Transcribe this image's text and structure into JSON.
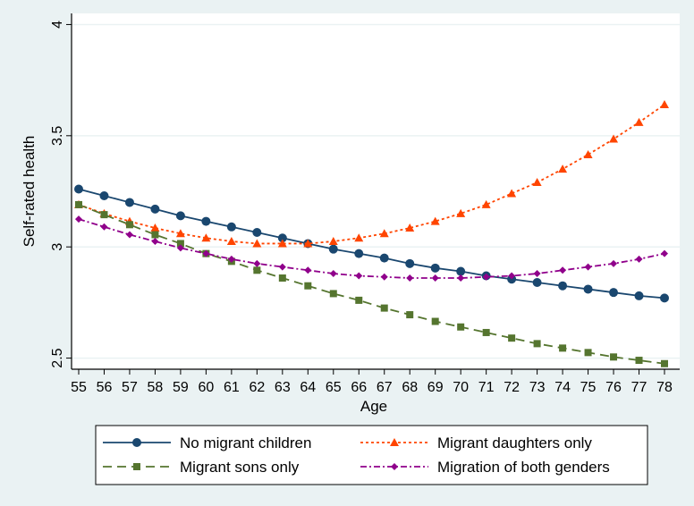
{
  "chart_data": {
    "type": "line",
    "title": "",
    "xlabel": "Age",
    "ylabel": "Self-rated health",
    "x": [
      55,
      56,
      57,
      58,
      59,
      60,
      61,
      62,
      63,
      64,
      65,
      66,
      67,
      68,
      69,
      70,
      71,
      72,
      73,
      74,
      75,
      76,
      77,
      78
    ],
    "xlim": [
      55,
      78
    ],
    "ylim": [
      2.45,
      4.05
    ],
    "yticks": [
      2.5,
      3,
      3.5,
      4
    ],
    "ytick_labels": [
      "2.5",
      "3",
      "3.5",
      "4"
    ],
    "grid": "horizontal",
    "legend_position": "bottom",
    "series": [
      {
        "name": "No migrant children",
        "color": "#1a476f",
        "marker": "circle",
        "line_style": "solid",
        "values": [
          3.26,
          3.23,
          3.2,
          3.17,
          3.14,
          3.115,
          3.09,
          3.065,
          3.04,
          3.015,
          2.99,
          2.97,
          2.95,
          2.925,
          2.905,
          2.89,
          2.87,
          2.855,
          2.84,
          2.825,
          2.81,
          2.795,
          2.78,
          2.77
        ]
      },
      {
        "name": "Migrant daughters only",
        "color": "#ff4500",
        "marker": "triangle",
        "line_style": "dotted",
        "values": [
          3.19,
          3.15,
          3.115,
          3.085,
          3.06,
          3.04,
          3.025,
          3.015,
          3.015,
          3.015,
          3.025,
          3.04,
          3.06,
          3.085,
          3.115,
          3.15,
          3.19,
          3.24,
          3.29,
          3.35,
          3.415,
          3.485,
          3.56,
          3.64
        ]
      },
      {
        "name": "Migrant sons only",
        "color": "#55752f",
        "marker": "square",
        "line_style": "dashed",
        "values": [
          3.19,
          3.145,
          3.1,
          3.055,
          3.015,
          2.97,
          2.935,
          2.895,
          2.86,
          2.825,
          2.79,
          2.76,
          2.725,
          2.695,
          2.665,
          2.64,
          2.615,
          2.59,
          2.565,
          2.545,
          2.525,
          2.505,
          2.49,
          2.475
        ]
      },
      {
        "name": "Migration of both genders",
        "color": "#90008b",
        "marker": "diamond",
        "line_style": "dash-dot",
        "values": [
          3.125,
          3.09,
          3.055,
          3.025,
          2.995,
          2.97,
          2.945,
          2.925,
          2.91,
          2.895,
          2.88,
          2.87,
          2.865,
          2.86,
          2.86,
          2.86,
          2.865,
          2.87,
          2.88,
          2.895,
          2.91,
          2.925,
          2.945,
          2.97
        ]
      }
    ]
  }
}
